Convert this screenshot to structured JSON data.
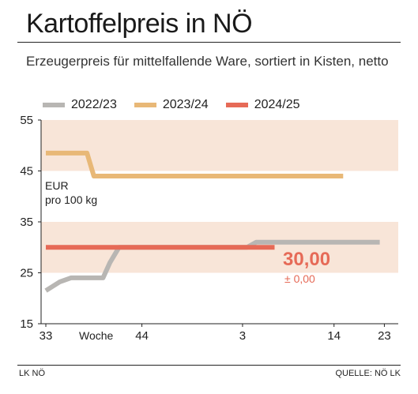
{
  "header": {
    "title": "Kartoffelpreis in NÖ",
    "subtitle": "Erzeugerpreis für mittelfallende Ware, sortiert in Kisten, netto"
  },
  "footer": {
    "left": "LK NÖ",
    "right": "QUELLE: NÖ LK"
  },
  "colors": {
    "band": "#f8e5d8",
    "series_2022_23": "#b8b6b3",
    "series_2023_24": "#e8b877",
    "series_2024_25": "#e66a57",
    "value_label": "#e66a57"
  },
  "chart_data": {
    "type": "line",
    "unit_label_line1": "EUR",
    "unit_label_line2": "pro 100 kg",
    "ylim": [
      15,
      55
    ],
    "yticks": [
      "15",
      "25",
      "35",
      "45",
      "55"
    ],
    "bands": [
      [
        25,
        35
      ],
      [
        45,
        55
      ]
    ],
    "x_ticks": [
      "33",
      "Woche",
      "44",
      "3",
      "14",
      "23"
    ],
    "current_value": "30,00",
    "current_change": "± 0,00",
    "grid": false,
    "legend_position": "top",
    "series": [
      {
        "name": "2022/23",
        "points": [
          [
            0,
            21.5
          ],
          [
            3,
            23.2
          ],
          [
            5.5,
            24
          ],
          [
            12.5,
            24
          ],
          [
            14,
            27
          ],
          [
            16,
            30
          ],
          [
            44,
            30
          ],
          [
            46,
            31
          ],
          [
            73,
            31
          ]
        ]
      },
      {
        "name": "2023/24",
        "points": [
          [
            0,
            48.5
          ],
          [
            9,
            48.5
          ],
          [
            10.5,
            44
          ],
          [
            65,
            44
          ]
        ]
      },
      {
        "name": "2024/25",
        "points": [
          [
            0,
            30
          ],
          [
            50,
            30
          ]
        ]
      }
    ]
  }
}
